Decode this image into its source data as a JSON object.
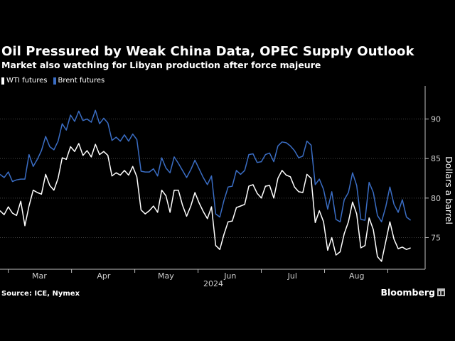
{
  "colors": {
    "background": "#000000",
    "wti": "#ffffff",
    "brent": "#3a6dc4",
    "grid": "#444444",
    "axis_text": "#cfcfcf"
  },
  "footer": {
    "source": "Source: ICE, Nymex",
    "brand": "Bloomberg",
    "brand_icon": "bloomberg-chart-icon"
  },
  "chart_data": {
    "type": "line",
    "title": "Oil Pressured by Weak China Data, OPEC Supply Outlook",
    "subtitle": "Market also watching for Libyan production after force majeure",
    "xlabel": "2024",
    "ylabel": "Dollars a barrel",
    "ylim": [
      71,
      94
    ],
    "yticks": [
      75,
      80,
      85,
      90
    ],
    "grid": true,
    "legend_position": "top-left",
    "xticks": [
      {
        "label": "Mar",
        "value": 19
      },
      {
        "label": "Apr",
        "value": 50
      },
      {
        "label": "May",
        "value": 80
      },
      {
        "label": "Jun",
        "value": 111
      },
      {
        "label": "Jul",
        "value": 141
      },
      {
        "label": "Aug",
        "value": 172
      }
    ],
    "x_range": [
      0,
      205
    ],
    "series": [
      {
        "name": "WTI futures",
        "color": "#ffffff",
        "x": [
          0,
          2,
          4,
          6,
          8,
          10,
          12,
          14,
          16,
          18,
          20,
          22,
          24,
          26,
          28,
          30,
          32,
          34,
          36,
          38,
          40,
          42,
          44,
          46,
          48,
          50,
          52,
          54,
          56,
          58,
          60,
          62,
          64,
          66,
          68,
          70,
          72,
          74,
          76,
          78,
          80,
          82,
          84,
          86,
          88,
          90,
          92,
          94,
          96,
          98,
          100,
          102,
          104,
          106,
          108,
          110,
          112,
          114,
          116,
          118,
          120,
          122,
          124,
          126,
          128,
          130,
          132,
          134,
          136,
          138,
          140,
          142,
          144,
          146,
          148,
          150,
          152,
          154,
          156,
          158,
          160,
          162,
          164,
          166,
          168,
          170,
          172,
          174,
          176,
          178,
          180,
          182,
          184,
          186,
          188,
          190,
          192,
          194,
          196,
          198
        ],
        "values": [
          78.4,
          77.9,
          78.9,
          78.1,
          77.8,
          79.6,
          76.5,
          79.0,
          81.0,
          80.7,
          80.5,
          83.0,
          81.6,
          81.0,
          82.5,
          85.1,
          84.9,
          86.5,
          85.9,
          86.9,
          85.4,
          86.0,
          85.2,
          86.8,
          85.5,
          85.9,
          85.4,
          82.8,
          83.2,
          82.9,
          83.5,
          82.9,
          84.0,
          82.7,
          78.5,
          78.0,
          78.4,
          79.0,
          78.2,
          81.0,
          80.3,
          78.2,
          81.0,
          81.0,
          79.1,
          77.7,
          79.0,
          80.7,
          79.4,
          78.3,
          77.4,
          78.9,
          74.0,
          73.5,
          75.4,
          77.0,
          77.1,
          78.8,
          79.0,
          79.2,
          81.5,
          81.7,
          80.6,
          80.0,
          81.5,
          81.6,
          80.0,
          82.5,
          83.5,
          82.9,
          82.7,
          81.4,
          80.8,
          80.7,
          83.0,
          82.5,
          76.9,
          78.4,
          77.0,
          73.4,
          75.0,
          72.8,
          73.2,
          75.5,
          77.0,
          79.5,
          78.0,
          73.7,
          74.0,
          77.5,
          76.0,
          72.6,
          72.0,
          74.5,
          77.0,
          74.8,
          73.6,
          73.8,
          73.5,
          73.7
        ]
      },
      {
        "name": "Brent futures",
        "color": "#3a6dc4",
        "x": [
          0,
          2,
          4,
          6,
          8,
          10,
          12,
          14,
          16,
          18,
          20,
          22,
          24,
          26,
          28,
          30,
          32,
          34,
          36,
          38,
          40,
          42,
          44,
          46,
          48,
          50,
          52,
          54,
          56,
          58,
          60,
          62,
          64,
          66,
          68,
          70,
          72,
          74,
          76,
          78,
          80,
          82,
          84,
          86,
          88,
          90,
          92,
          94,
          96,
          98,
          100,
          102,
          104,
          106,
          108,
          110,
          112,
          114,
          116,
          118,
          120,
          122,
          124,
          126,
          128,
          130,
          132,
          134,
          136,
          138,
          140,
          142,
          144,
          146,
          148,
          150,
          152,
          154,
          156,
          158,
          160,
          162,
          164,
          166,
          168,
          170,
          172,
          174,
          176,
          178,
          180,
          182,
          184,
          186,
          188,
          190,
          192,
          194,
          196,
          198
        ],
        "values": [
          83.0,
          82.6,
          83.3,
          82.1,
          82.3,
          82.4,
          82.4,
          85.5,
          84.0,
          84.9,
          86.0,
          87.8,
          86.5,
          86.1,
          87.2,
          89.4,
          88.6,
          90.5,
          89.7,
          91.0,
          89.8,
          90.0,
          89.6,
          91.1,
          89.4,
          90.1,
          89.5,
          87.3,
          87.7,
          87.2,
          88.0,
          87.2,
          88.1,
          87.4,
          83.4,
          83.3,
          83.3,
          83.7,
          82.8,
          85.1,
          83.8,
          83.2,
          85.2,
          84.4,
          83.5,
          82.6,
          83.6,
          84.8,
          83.7,
          82.6,
          81.7,
          82.8,
          78.0,
          77.6,
          79.7,
          81.4,
          81.5,
          83.5,
          83.0,
          83.5,
          85.5,
          85.6,
          84.5,
          84.6,
          85.5,
          85.7,
          84.6,
          86.6,
          87.1,
          87.0,
          86.6,
          86.0,
          85.1,
          85.3,
          87.2,
          86.7,
          81.7,
          82.4,
          81.1,
          78.6,
          80.8,
          77.3,
          77.0,
          79.8,
          80.7,
          83.2,
          81.6,
          77.3,
          77.2,
          82.0,
          80.7,
          77.8,
          77.0,
          78.9,
          81.4,
          79.2,
          78.2,
          79.8,
          77.6,
          77.2
        ]
      }
    ]
  }
}
